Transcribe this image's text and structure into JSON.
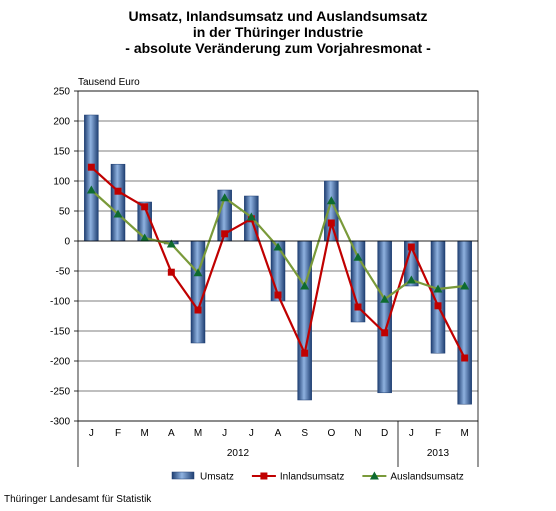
{
  "title_lines": [
    "Umsatz, Inlandsumsatz und Auslandsumsatz",
    "in der Thüringer Industrie",
    "- absolute Veränderung zum Vorjahresmonat -"
  ],
  "source": "Thüringer Landesamt für Statistik",
  "colors": {
    "bar": "#3f6fb0",
    "bar_dark": "#1f3f72",
    "bar_light": "#8fb2e0",
    "inland": "#c00000",
    "ausland": "#7a9a3a",
    "ausland_marker": "#0e6b2f",
    "grid": "#000000"
  },
  "chart_data": {
    "type": "bar",
    "ylabel": "Tausend Euro",
    "ylim": [
      -300,
      250
    ],
    "yticks": [
      250,
      200,
      150,
      100,
      50,
      0,
      -50,
      -100,
      -150,
      -200,
      -250,
      -300
    ],
    "categories": [
      "J",
      "F",
      "M",
      "A",
      "M",
      "J",
      "J",
      "A",
      "S",
      "O",
      "N",
      "D",
      "J",
      "F",
      "M"
    ],
    "year_labels": [
      {
        "label": "2012",
        "from": 0,
        "to": 11
      },
      {
        "label": "2013",
        "from": 12,
        "to": 14
      }
    ],
    "grid": true,
    "legend": "bottom",
    "series": [
      {
        "name": "Umsatz",
        "kind": "bar",
        "values": [
          210,
          128,
          65,
          -5,
          -170,
          85,
          75,
          -100,
          -265,
          100,
          -135,
          -253,
          -75,
          -187,
          -272
        ]
      },
      {
        "name": "Inlandsumsatz",
        "kind": "line-square",
        "values": [
          123,
          83,
          57,
          -52,
          -115,
          12,
          37,
          -90,
          -187,
          30,
          -110,
          -153,
          -10,
          -108,
          -195
        ]
      },
      {
        "name": "Auslandsumsatz",
        "kind": "line-triangle",
        "values": [
          85,
          45,
          5,
          -5,
          -53,
          72,
          40,
          -10,
          -75,
          67,
          -27,
          -97,
          -65,
          -80,
          -75
        ]
      }
    ]
  }
}
